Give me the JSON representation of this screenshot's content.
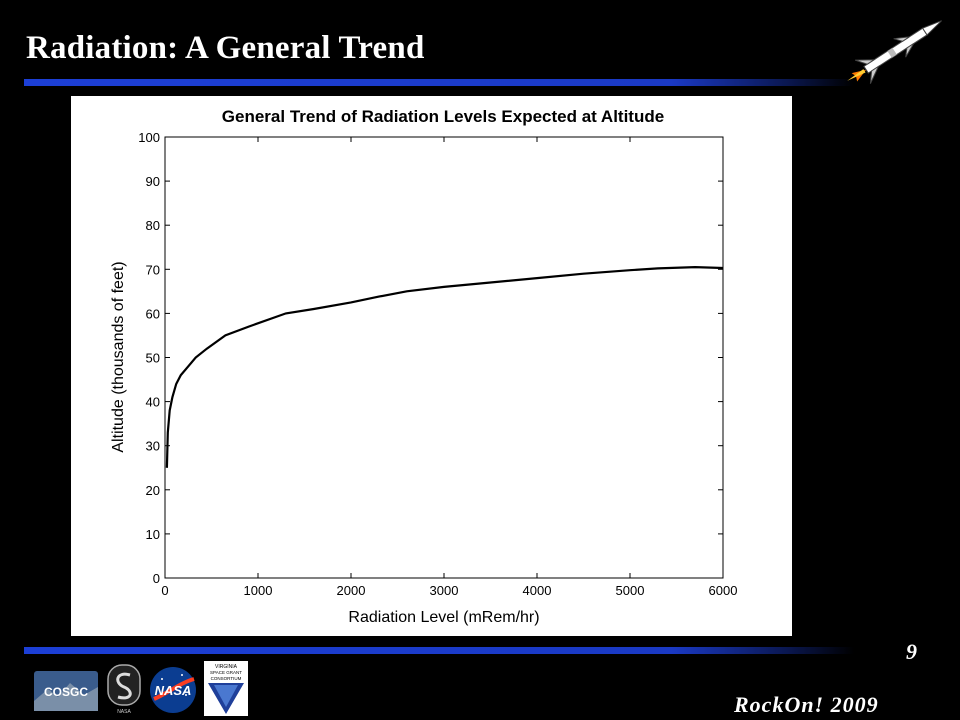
{
  "slide": {
    "title": "Radiation: A General Trend",
    "page_number": "9",
    "footer": "RockOn! 2009",
    "logo_text": {
      "cosgc": "COSGC",
      "nasa": "NASA",
      "virginia": "VIRGINIA",
      "space_grant": "SPACE GRANT",
      "consortium": "CONSORTIUM"
    }
  },
  "colors": {
    "background": "#000000",
    "accent_bar": "#1c3fd6",
    "plot_line": "#000000"
  },
  "icons": [
    "rocket-icon",
    "cosgc-logo",
    "nasa-s-logo",
    "nasa-meatball-logo",
    "virginia-space-grant-logo"
  ],
  "chart_data": {
    "type": "line",
    "title": "General Trend of Radiation Levels Expected at Altitude",
    "xlabel": "Radiation Level (mRem/hr)",
    "ylabel": "Altitude (thousands of feet)",
    "xlim": [
      0,
      6000
    ],
    "ylim": [
      0,
      100
    ],
    "xticks": [
      0,
      1000,
      2000,
      3000,
      4000,
      5000,
      6000
    ],
    "yticks": [
      0,
      10,
      20,
      30,
      40,
      50,
      60,
      70,
      80,
      90,
      100
    ],
    "grid": false,
    "series": [
      {
        "x": [
          20,
          30,
          50,
          80,
          120,
          170,
          250,
          330,
          450,
          650,
          900,
          1300,
          1600,
          2000,
          2300,
          2600,
          3000,
          3500,
          4000,
          4500,
          5000,
          5300,
          5700,
          6000
        ],
        "y": [
          25,
          33,
          38,
          41,
          44,
          46,
          48,
          50,
          52,
          55,
          57,
          60,
          61,
          62.5,
          63.8,
          65,
          66,
          67,
          68,
          69,
          69.8,
          70.2,
          70.5,
          70.3
        ]
      }
    ]
  }
}
